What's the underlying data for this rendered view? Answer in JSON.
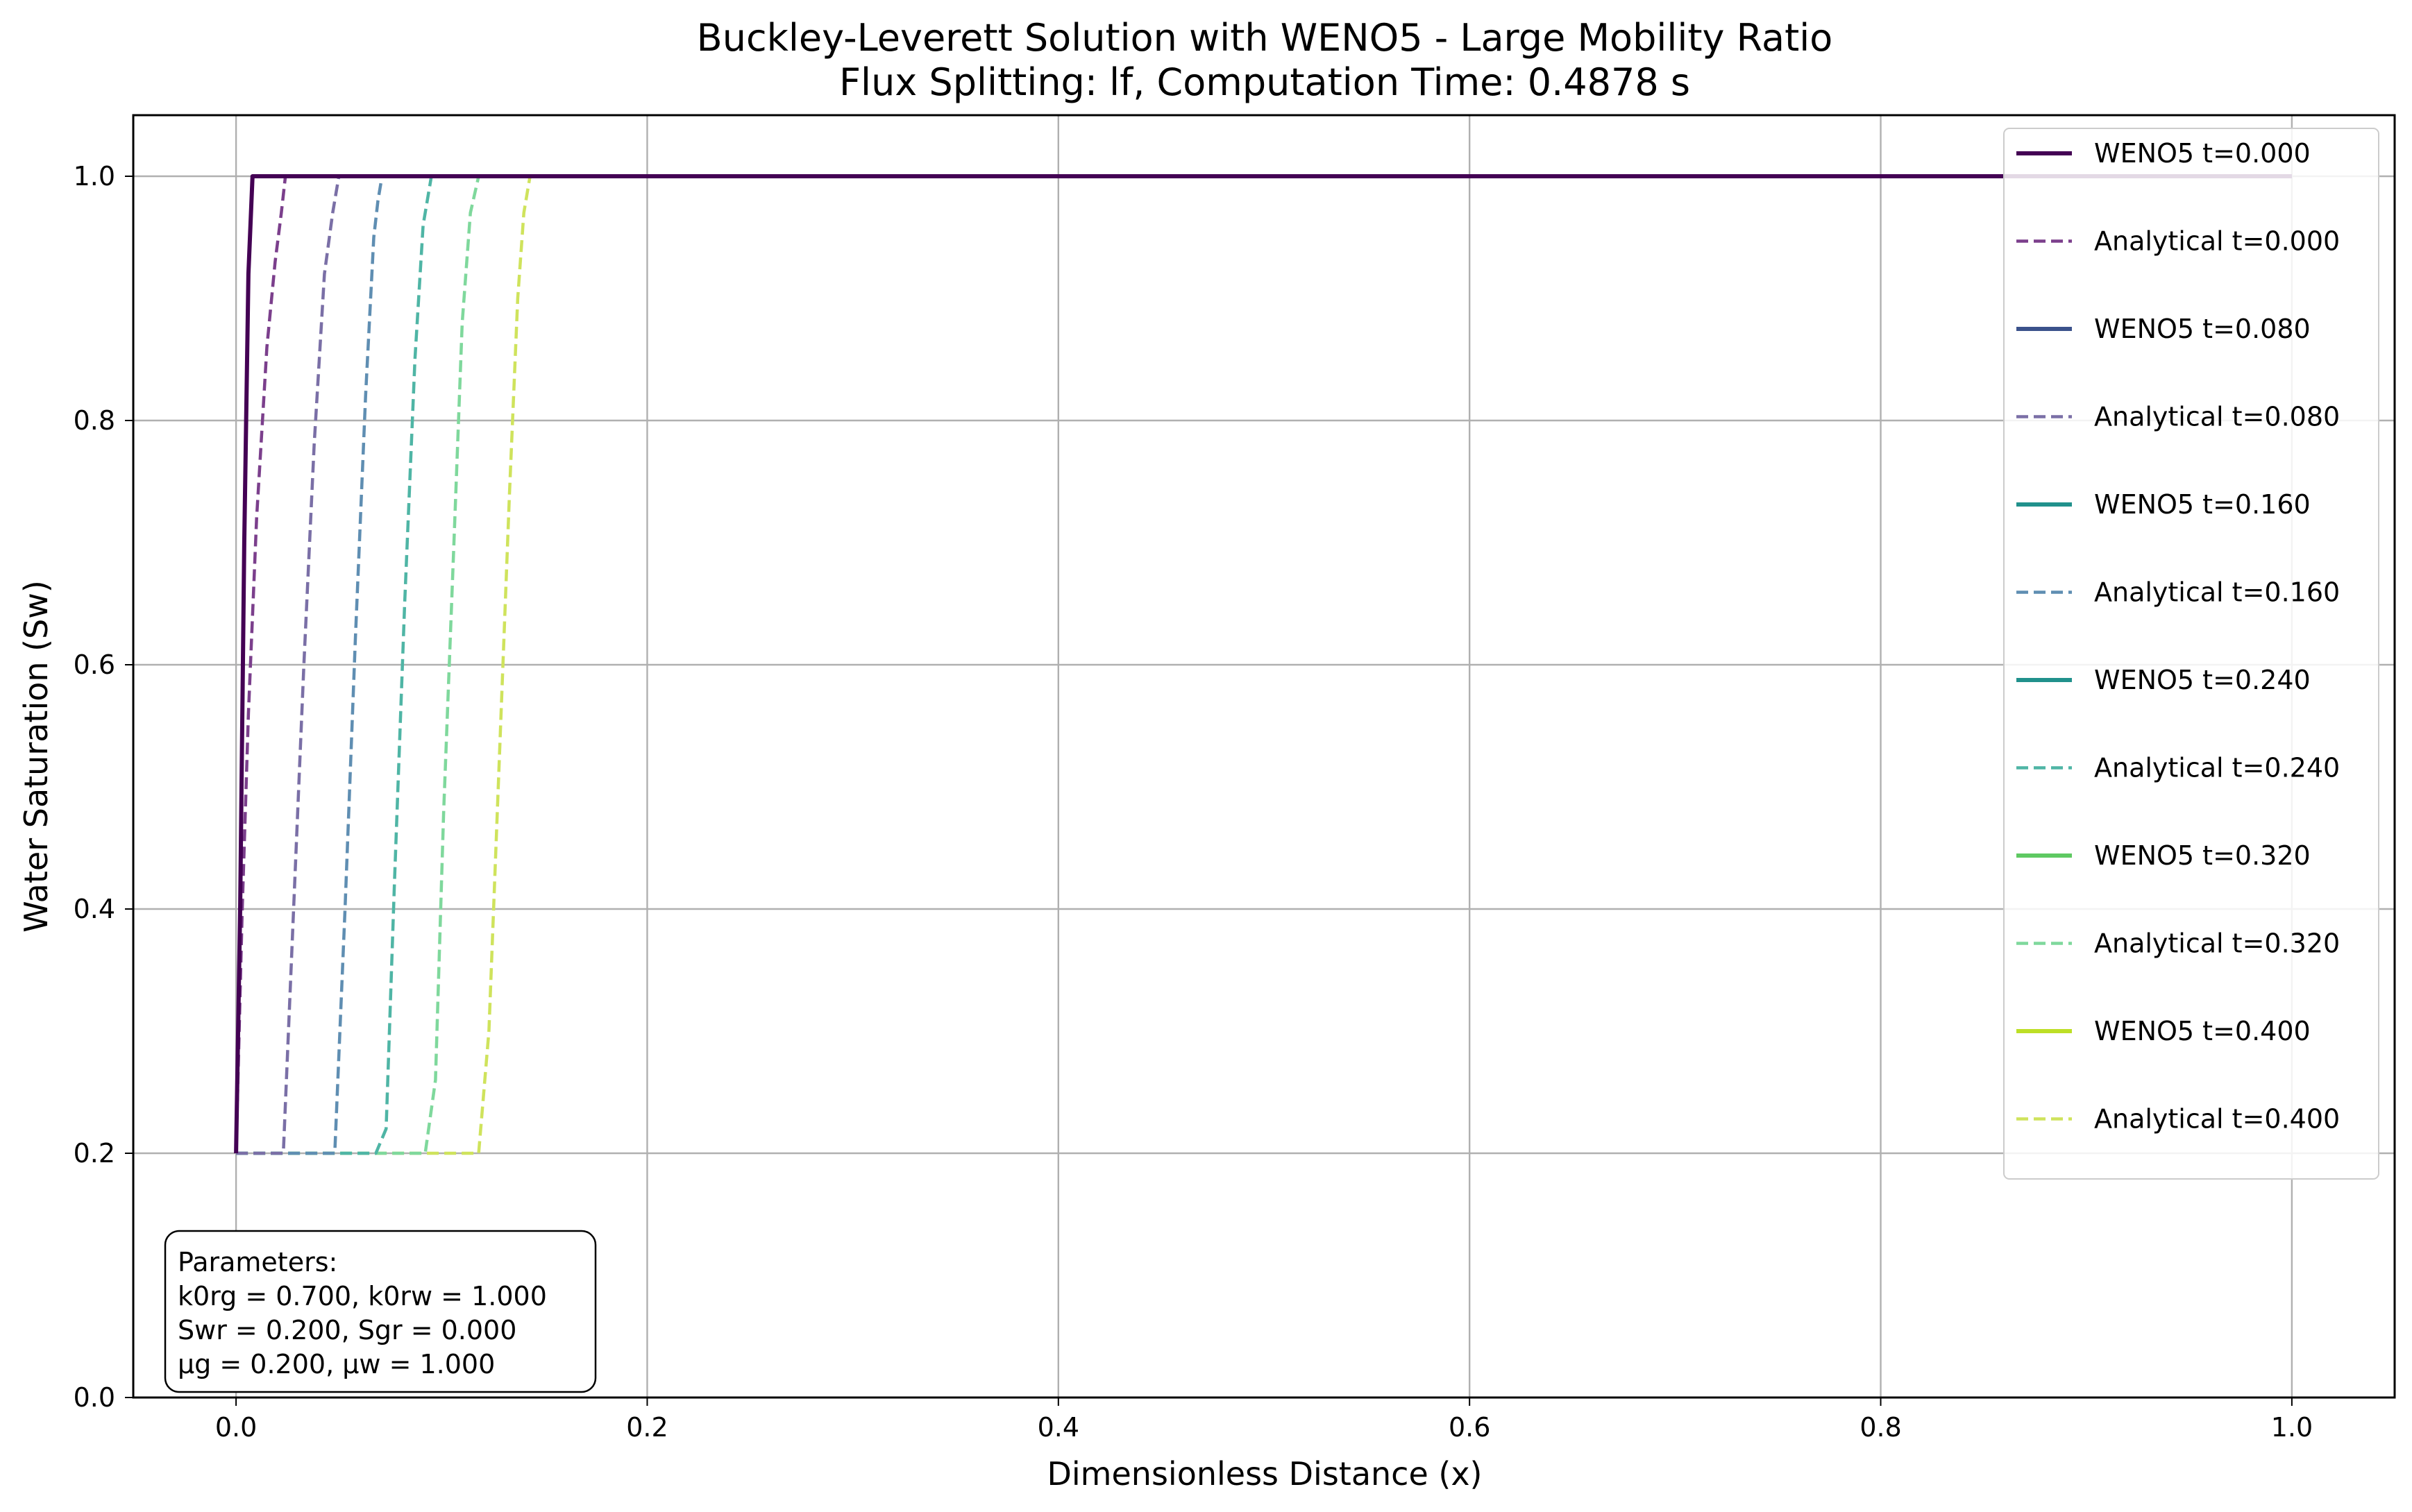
{
  "chart_data": {
    "type": "line",
    "title": "Buckley-Leverett Solution with WENO5 - Large Mobility Ratio",
    "subtitle": "Flux Splitting: lf, Computation Time: 0.4878 s",
    "xlabel": "Dimensionless Distance (x)",
    "ylabel": "Water Saturation (Sw)",
    "xlim": [
      -0.05,
      1.05
    ],
    "ylim": [
      0.0,
      1.05
    ],
    "xticks": [
      0.0,
      0.2,
      0.4,
      0.6,
      0.8,
      1.0
    ],
    "xtick_labels": [
      "0.0",
      "0.2",
      "0.4",
      "0.6",
      "0.8",
      "1.0"
    ],
    "yticks": [
      0.0,
      0.2,
      0.4,
      0.6,
      0.8,
      1.0
    ],
    "ytick_labels": [
      "0.0",
      "0.2",
      "0.4",
      "0.6",
      "0.8",
      "1.0"
    ],
    "grid": true,
    "legend_position": "top-right",
    "series": [
      {
        "name": "WENO5 t=0.000",
        "style": "solid",
        "color": "#440154",
        "x": [
          0.0,
          0.002,
          0.004,
          0.006,
          0.008,
          1.0
        ],
        "y": [
          0.2,
          0.4,
          0.7,
          0.92,
          1.0,
          1.0
        ]
      },
      {
        "name": "Analytical t=0.000",
        "style": "dashed",
        "color": "#7b3f8c",
        "x": [
          0.0,
          0.003,
          0.006,
          0.01,
          0.015,
          0.019,
          0.022,
          0.024,
          1.0
        ],
        "y": [
          0.2,
          0.4,
          0.56,
          0.72,
          0.86,
          0.93,
          0.97,
          1.0,
          1.0
        ]
      },
      {
        "name": "WENO5 t=0.080",
        "style": "solid",
        "color": "#3b528b",
        "x": [],
        "y": []
      },
      {
        "name": "Analytical t=0.080",
        "style": "dashed",
        "color": "#7a6fa6",
        "x": [
          0.0,
          0.023,
          0.028,
          0.033,
          0.038,
          0.043,
          0.047,
          0.05,
          1.0
        ],
        "y": [
          0.2,
          0.2,
          0.4,
          0.6,
          0.78,
          0.92,
          0.97,
          1.0,
          1.0
        ]
      },
      {
        "name": "WENO5 t=0.160",
        "style": "solid",
        "color": "#21918c",
        "x": [],
        "y": []
      },
      {
        "name": "Analytical t=0.160",
        "style": "dashed",
        "color": "#5f8eb2",
        "x": [
          0.0,
          0.048,
          0.053,
          0.058,
          0.063,
          0.067,
          0.069,
          0.071,
          1.0
        ],
        "y": [
          0.2,
          0.2,
          0.4,
          0.62,
          0.82,
          0.95,
          0.98,
          1.0,
          1.0
        ]
      },
      {
        "name": "WENO5 t=0.240",
        "style": "solid",
        "color": "#21918c",
        "x": [],
        "y": []
      },
      {
        "name": "Analytical t=0.240",
        "style": "dashed",
        "color": "#4fb5a5",
        "x": [
          0.0,
          0.068,
          0.073,
          0.077,
          0.082,
          0.087,
          0.091,
          0.095,
          1.0
        ],
        "y": [
          0.2,
          0.2,
          0.22,
          0.42,
          0.65,
          0.85,
          0.96,
          1.0,
          1.0
        ]
      },
      {
        "name": "WENO5 t=0.320",
        "style": "solid",
        "color": "#5ec962",
        "x": [],
        "y": []
      },
      {
        "name": "Analytical t=0.320",
        "style": "dashed",
        "color": "#7fd89c",
        "x": [
          0.0,
          0.092,
          0.097,
          0.101,
          0.106,
          0.11,
          0.114,
          0.118,
          1.0
        ],
        "y": [
          0.2,
          0.2,
          0.26,
          0.48,
          0.7,
          0.88,
          0.97,
          1.0,
          1.0
        ]
      },
      {
        "name": "WENO5 t=0.400",
        "style": "solid",
        "color": "#bddf26",
        "x": [],
        "y": []
      },
      {
        "name": "Analytical t=0.400",
        "style": "dashed",
        "color": "#cfe35c",
        "x": [
          0.0,
          0.118,
          0.123,
          0.128,
          0.133,
          0.137,
          0.14,
          0.143,
          1.0
        ],
        "y": [
          0.2,
          0.2,
          0.3,
          0.52,
          0.74,
          0.9,
          0.97,
          1.0,
          1.0
        ]
      }
    ],
    "annotation": {
      "lines": [
        "Parameters:",
        "k0rg = 0.700, k0rw = 1.000",
        "Swr = 0.200, Sgr = 0.000",
        "μg = 0.200, μw = 1.000"
      ]
    }
  }
}
